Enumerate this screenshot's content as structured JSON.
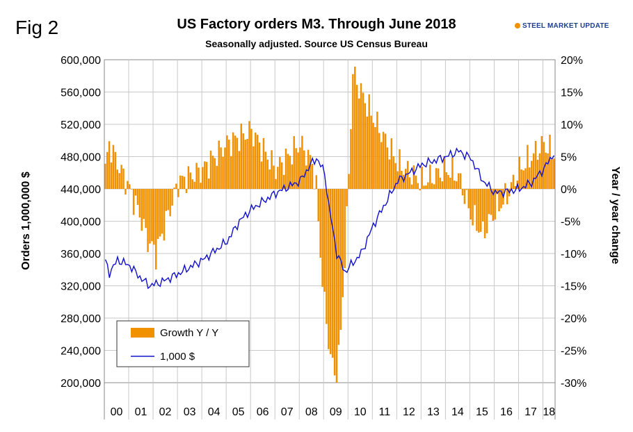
{
  "header": {
    "fig_label": "Fig 2",
    "title": "US Factory orders M3. Through June 2018",
    "subtitle": "Seasonally adjusted.  Source US Census Bureau",
    "logo": "STEEL MARKET UPDATE"
  },
  "colors": {
    "bars": "#f29100",
    "line": "#1010c8",
    "grid": "#c8c8c8",
    "logo_text": "#1d3f8f",
    "logo_accent": "#f29100"
  },
  "chart_data": {
    "type": "bar",
    "xlabel": "",
    "ylabel": "Orders 1,000,000 $",
    "y2label": "Year / year change",
    "ylim": [
      200000,
      600000
    ],
    "y2lim": [
      -30,
      20
    ],
    "y_ticks": [
      "200,000",
      "240,000",
      "280,000",
      "320,000",
      "360,000",
      "400,000",
      "440,000",
      "480,000",
      "520,000",
      "560,000",
      "600,000"
    ],
    "y2_ticks": [
      "-30%",
      "-25%",
      "-20%",
      "-15%",
      "-10%",
      "-5%",
      "0%",
      "5%",
      "10%",
      "15%",
      "20%"
    ],
    "x_period": "Jan 2000 - Jun 2018 (monthly)",
    "x_tick_labels": [
      "00",
      "01",
      "02",
      "03",
      "04",
      "05",
      "06",
      "07",
      "08",
      "09",
      "10",
      "11",
      "12",
      "13",
      "14",
      "15",
      "16",
      "17",
      "18"
    ],
    "grid": true,
    "legend_position": "bottom-left",
    "series": [
      {
        "name": "Growth Y / Y",
        "kind": "bar",
        "axis": "right",
        "unit": "%",
        "anchors_month_index": [
          0,
          2,
          6,
          12,
          17,
          21,
          25,
          29,
          36,
          48,
          60,
          66,
          72,
          84,
          96,
          102,
          104,
          106,
          108,
          111,
          114,
          116,
          119,
          122,
          126,
          132,
          144,
          156,
          168,
          174,
          180,
          186,
          191,
          198,
          204,
          210,
          216,
          222
        ],
        "anchors_value": [
          3,
          7,
          4,
          0,
          -4,
          -8,
          -10,
          -6,
          1,
          3,
          7,
          8,
          9,
          3,
          7,
          4,
          0,
          -10,
          -18,
          -26,
          -30,
          -22,
          -5,
          18,
          15,
          11,
          4,
          1,
          3,
          2,
          -4,
          -7,
          -4,
          -1,
          3,
          5,
          7,
          5
        ]
      },
      {
        "name": "1,000 $",
        "kind": "line",
        "axis": "left",
        "unit": "$ millions",
        "anchors_month_index": [
          0,
          2,
          6,
          12,
          18,
          22,
          28,
          36,
          48,
          60,
          66,
          72,
          78,
          84,
          96,
          101,
          104,
          108,
          110,
          114,
          118,
          126,
          132,
          144,
          156,
          162,
          168,
          174,
          180,
          186,
          192,
          198,
          204,
          210,
          216,
          222
        ],
        "anchors_value": [
          350000,
          336000,
          352000,
          345000,
          328000,
          320000,
          325000,
          335000,
          352000,
          375000,
          400000,
          415000,
          425000,
          435000,
          450000,
          470000,
          478000,
          460000,
          420000,
          360000,
          337000,
          360000,
          395000,
          450000,
          470000,
          475000,
          480000,
          487000,
          478000,
          450000,
          435000,
          437000,
          440000,
          448000,
          465000,
          488000
        ]
      }
    ]
  }
}
